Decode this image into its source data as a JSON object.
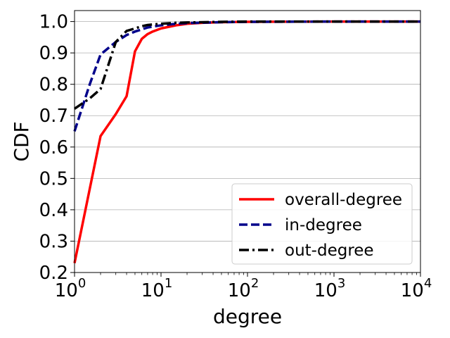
{
  "chart_data": {
    "type": "line",
    "xlabel": "degree",
    "ylabel": "CDF",
    "x_scale": "log",
    "xlim": [
      1,
      10000
    ],
    "ylim": [
      0.2,
      1.035
    ],
    "grid": "horizontal",
    "legend_position": "lower-right",
    "x_ticks": [
      {
        "value": 1,
        "base": "10",
        "exp": "0"
      },
      {
        "value": 10,
        "base": "10",
        "exp": "1"
      },
      {
        "value": 100,
        "base": "10",
        "exp": "2"
      },
      {
        "value": 1000,
        "base": "10",
        "exp": "3"
      },
      {
        "value": 10000,
        "base": "10",
        "exp": "4"
      }
    ],
    "y_ticks": [
      {
        "value": 0.2,
        "label": "0.2"
      },
      {
        "value": 0.3,
        "label": "0.3"
      },
      {
        "value": 0.4,
        "label": "0.4"
      },
      {
        "value": 0.5,
        "label": "0.5"
      },
      {
        "value": 0.6,
        "label": "0.6"
      },
      {
        "value": 0.7,
        "label": "0.7"
      },
      {
        "value": 0.8,
        "label": "0.8"
      },
      {
        "value": 0.9,
        "label": "0.9"
      },
      {
        "value": 1.0,
        "label": "1.0"
      }
    ],
    "series": [
      {
        "name": "overall-degree",
        "color": "#ff0000",
        "line_style": "solid",
        "x": [
          1,
          2,
          3,
          4,
          5,
          6,
          7,
          8,
          10,
          15,
          20,
          30,
          50,
          100,
          1000,
          10000
        ],
        "y": [
          0.23,
          0.635,
          0.705,
          0.762,
          0.905,
          0.945,
          0.96,
          0.968,
          0.978,
          0.988,
          0.993,
          0.996,
          0.998,
          0.999,
          1.0,
          1.0
        ]
      },
      {
        "name": "in-degree",
        "color": "#00008b",
        "line_style": "dashed",
        "x": [
          1,
          1.5,
          2,
          3,
          4,
          5,
          6,
          7,
          10,
          15,
          20,
          50,
          100,
          1000,
          10000
        ],
        "y": [
          0.65,
          0.8,
          0.895,
          0.935,
          0.957,
          0.968,
          0.975,
          0.981,
          0.988,
          0.993,
          0.995,
          0.998,
          0.999,
          1.0,
          1.0
        ]
      },
      {
        "name": "out-degree",
        "color": "#000000",
        "line_style": "dashdot",
        "x": [
          1,
          1.5,
          2,
          3,
          4,
          5,
          6,
          7,
          10,
          15,
          20,
          50,
          100,
          1000,
          10000
        ],
        "y": [
          0.722,
          0.755,
          0.785,
          0.935,
          0.97,
          0.978,
          0.985,
          0.989,
          0.993,
          0.996,
          0.997,
          0.999,
          1.0,
          1.0,
          1.0
        ]
      }
    ]
  }
}
